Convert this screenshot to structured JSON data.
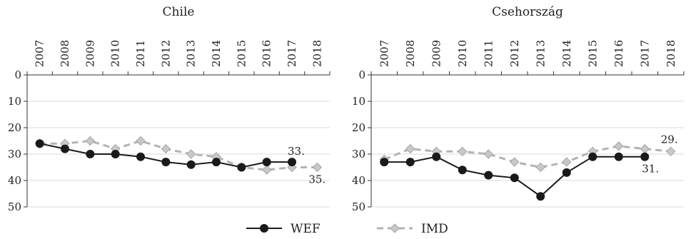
{
  "chart_data": [
    {
      "type": "line",
      "title": "Chile",
      "categories": [
        "2007",
        "2008",
        "2009",
        "2010",
        "2011",
        "2012",
        "2013",
        "2014",
        "2015",
        "2016",
        "2017",
        "2018"
      ],
      "y_ticks": [
        "0",
        "10",
        "20",
        "30",
        "40",
        "50"
      ],
      "ylim": [
        0,
        50
      ],
      "y_inverted": true,
      "grid": true,
      "series": [
        {
          "name": "WEF",
          "color": "#1a1a1a",
          "values": [
            26,
            28,
            30,
            30,
            31,
            33,
            34,
            33,
            35,
            33,
            33,
            null
          ]
        },
        {
          "name": "IMD",
          "color": "#b3b3b3",
          "values": [
            26,
            26,
            25,
            28,
            25,
            28,
            30,
            31,
            35,
            36,
            35,
            35
          ]
        }
      ],
      "annotations": [
        {
          "text": "33.",
          "series": "WEF",
          "category": "2017"
        },
        {
          "text": "35.",
          "series": "IMD",
          "category": "2018"
        }
      ]
    },
    {
      "type": "line",
      "title": "Csehország",
      "categories": [
        "2007",
        "2008",
        "2009",
        "2010",
        "2011",
        "2012",
        "2013",
        "2014",
        "2015",
        "2016",
        "2017",
        "2018"
      ],
      "y_ticks": [
        "0",
        "10",
        "20",
        "30",
        "40",
        "50"
      ],
      "ylim": [
        0,
        50
      ],
      "y_inverted": true,
      "grid": true,
      "series": [
        {
          "name": "WEF",
          "color": "#1a1a1a",
          "values": [
            33,
            33,
            31,
            36,
            38,
            39,
            46,
            37,
            31,
            31,
            31,
            null
          ]
        },
        {
          "name": "IMD",
          "color": "#b3b3b3",
          "values": [
            32,
            28,
            29,
            29,
            30,
            33,
            35,
            33,
            29,
            27,
            28,
            29
          ]
        }
      ],
      "annotations": [
        {
          "text": "29.",
          "series": "IMD",
          "category": "2018"
        },
        {
          "text": "31.",
          "series": "WEF",
          "category": "2017"
        }
      ]
    }
  ],
  "legend": {
    "position": "bottom-center",
    "items": [
      {
        "label": "WEF",
        "color": "#1a1a1a",
        "marker": "circle",
        "line": "solid"
      },
      {
        "label": "IMD",
        "color": "#b3b3b3",
        "marker": "diamond",
        "line": "dashed"
      }
    ]
  }
}
